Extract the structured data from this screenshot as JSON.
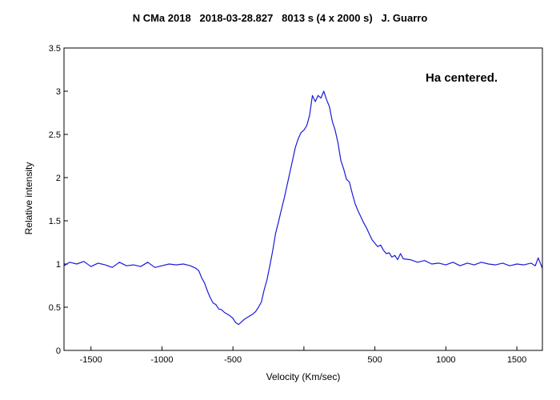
{
  "chart_data": {
    "type": "line",
    "title": "N CMa 2018   2018-03-28.827   8013 s (4 x 2000 s)   J. Guarro",
    "annotation": "Ha centered.",
    "xlabel": "Velocity (Km/sec)",
    "ylabel": "Relative intensity",
    "xlim": [
      -1690,
      1680
    ],
    "ylim": [
      0,
      3.5
    ],
    "xticks": [
      -1500,
      -1000,
      -500,
      0,
      500,
      1000,
      1500
    ],
    "xtick_labels": [
      "-1500",
      "-1000",
      "-500",
      "",
      "500",
      "1000",
      "1500"
    ],
    "yticks": [
      0,
      0.5,
      1,
      1.5,
      2,
      2.5,
      3,
      3.5
    ],
    "ytick_labels": [
      "0",
      "0.5",
      "1",
      "1.5",
      "2",
      "2.5",
      "3",
      "3.5"
    ],
    "grid": false,
    "colors": {
      "line": "#1a1adc",
      "axes": "#000000",
      "background": "#ffffff"
    },
    "series": [
      {
        "x": [
          -1690,
          -1650,
          -1600,
          -1550,
          -1500,
          -1450,
          -1400,
          -1350,
          -1300,
          -1250,
          -1200,
          -1150,
          -1100,
          -1050,
          -1000,
          -950,
          -900,
          -850,
          -800,
          -760,
          -740,
          -720,
          -700,
          -680,
          -660,
          -640,
          -620,
          -600,
          -580,
          -560,
          -540,
          -520,
          -500,
          -480,
          -460,
          -440,
          -420,
          -400,
          -380,
          -360,
          -340,
          -320,
          -300,
          -280,
          -260,
          -240,
          -220,
          -200,
          -180,
          -160,
          -140,
          -120,
          -100,
          -80,
          -60,
          -40,
          -20,
          0,
          20,
          40,
          60,
          80,
          100,
          120,
          140,
          160,
          180,
          200,
          220,
          240,
          260,
          280,
          300,
          320,
          340,
          360,
          380,
          400,
          420,
          440,
          460,
          480,
          500,
          520,
          540,
          560,
          580,
          600,
          620,
          640,
          660,
          680,
          700,
          750,
          800,
          850,
          900,
          950,
          1000,
          1050,
          1100,
          1150,
          1200,
          1250,
          1300,
          1350,
          1400,
          1450,
          1500,
          1550,
          1600,
          1630,
          1650,
          1680
        ],
        "y": [
          0.98,
          1.02,
          1.0,
          1.03,
          0.97,
          1.01,
          0.99,
          0.96,
          1.02,
          0.98,
          0.99,
          0.97,
          1.02,
          0.96,
          0.98,
          1.0,
          0.99,
          1.0,
          0.98,
          0.95,
          0.92,
          0.84,
          0.78,
          0.69,
          0.61,
          0.55,
          0.53,
          0.48,
          0.47,
          0.44,
          0.42,
          0.4,
          0.37,
          0.32,
          0.3,
          0.33,
          0.36,
          0.38,
          0.4,
          0.42,
          0.45,
          0.5,
          0.56,
          0.7,
          0.82,
          0.98,
          1.15,
          1.35,
          1.48,
          1.62,
          1.75,
          1.9,
          2.05,
          2.2,
          2.35,
          2.45,
          2.52,
          2.55,
          2.6,
          2.72,
          2.95,
          2.88,
          2.95,
          2.92,
          3.0,
          2.9,
          2.82,
          2.65,
          2.55,
          2.4,
          2.2,
          2.1,
          1.98,
          1.95,
          1.82,
          1.7,
          1.62,
          1.55,
          1.48,
          1.42,
          1.35,
          1.28,
          1.24,
          1.2,
          1.22,
          1.16,
          1.12,
          1.13,
          1.08,
          1.1,
          1.05,
          1.12,
          1.06,
          1.05,
          1.02,
          1.04,
          1.0,
          1.01,
          0.99,
          1.02,
          0.98,
          1.01,
          0.99,
          1.02,
          1.0,
          0.99,
          1.01,
          0.98,
          1.0,
          0.99,
          1.01,
          0.98,
          1.07,
          0.95
        ]
      }
    ]
  }
}
